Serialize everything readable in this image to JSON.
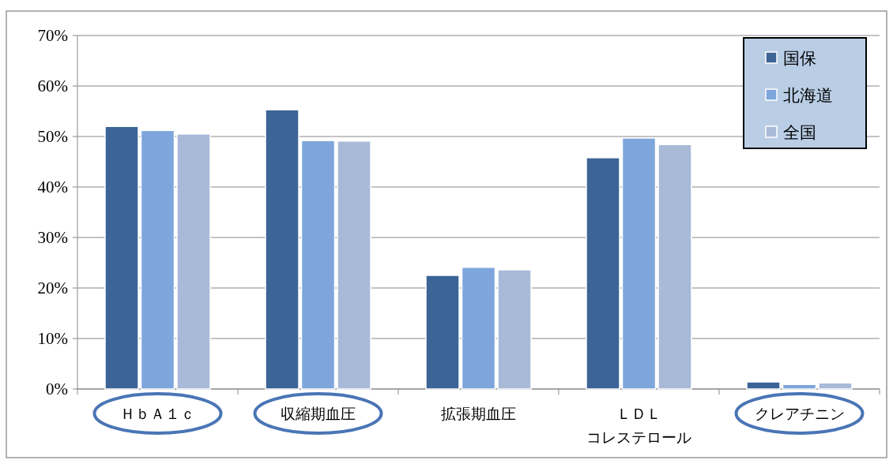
{
  "chart_data": {
    "type": "bar",
    "categories": [
      "ＨｂＡ１ｃ",
      "収縮期血圧",
      "拡張期血圧",
      "ＬＤＬコレステロール",
      "クレアチニン"
    ],
    "series": [
      {
        "name": "国保",
        "color": "#3c6496",
        "values": [
          52.0,
          55.3,
          22.5,
          45.8,
          1.4
        ]
      },
      {
        "name": "北海道",
        "color": "#7ea6dc",
        "values": [
          51.2,
          49.2,
          24.1,
          49.7,
          0.9
        ]
      },
      {
        "name": "全国",
        "color": "#a9bad8",
        "values": [
          50.5,
          49.1,
          23.6,
          48.4,
          1.2
        ]
      }
    ],
    "ylim": [
      0,
      70
    ],
    "yticks": [
      {
        "value": 0,
        "label": "0%"
      },
      {
        "value": 10,
        "label": "10%"
      },
      {
        "value": 20,
        "label": "20%"
      },
      {
        "value": 30,
        "label": "30%"
      },
      {
        "value": 40,
        "label": "40%"
      },
      {
        "value": 50,
        "label": "50%"
      },
      {
        "value": 60,
        "label": "60%"
      },
      {
        "value": 70,
        "label": "70%"
      }
    ],
    "grid": "y",
    "legend": "top right"
  }
}
